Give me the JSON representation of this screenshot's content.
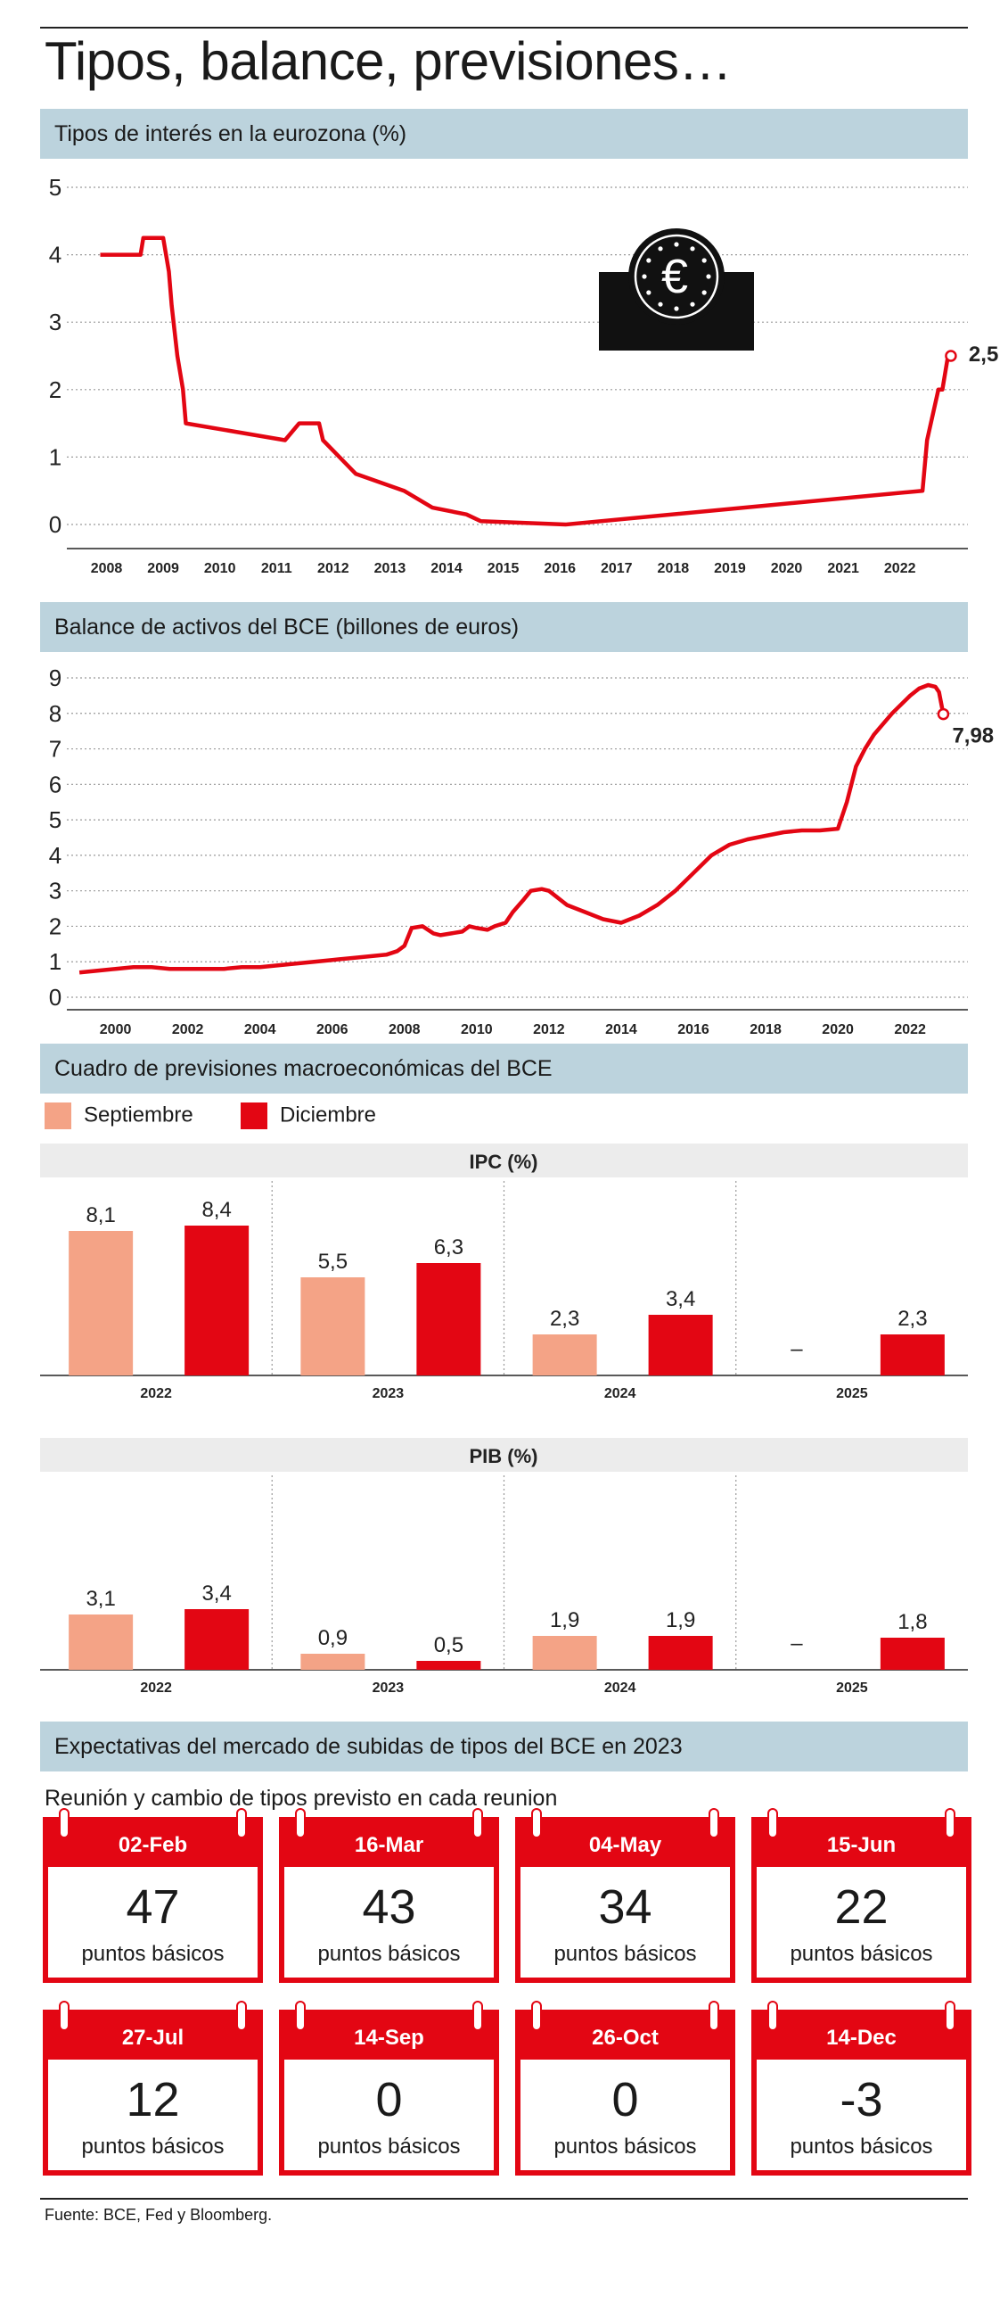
{
  "page": {
    "title": "Tipos, balance, previsiones…",
    "source": "Fuente: BCE, Fed y Bloomberg."
  },
  "colors": {
    "red": "#e30613",
    "salmon": "#f4a386",
    "section_bg": "#bcd3dd",
    "panel_bg": "#ececec"
  },
  "chart_data": [
    {
      "type": "line",
      "title": "Tipos de interés en la eurozona (%)",
      "ylim": [
        0,
        5
      ],
      "yticks": [
        "0",
        "1",
        "2",
        "3",
        "4",
        "5"
      ],
      "xticks": [
        "2008",
        "2009",
        "2010",
        "2011",
        "2012",
        "2013",
        "2014",
        "2015",
        "2016",
        "2017",
        "2018",
        "2019",
        "2020",
        "2021",
        "2022"
      ],
      "end_label": "2,5",
      "icon": "euro-icon",
      "series": [
        {
          "x": [
            2007.99,
            2008.7,
            2008.75,
            2009.1,
            2009.2,
            2009.25,
            2009.35,
            2009.45,
            2009.5,
            2011.25,
            2011.5,
            2011.85,
            2011.92,
            2012.5,
            2013.35,
            2013.85,
            2014.45,
            2014.7,
            2016.2,
            2022.5,
            2022.58,
            2022.78,
            2022.85,
            2022.95,
            2023.0
          ],
          "y": [
            4.0,
            4.0,
            4.25,
            4.25,
            3.75,
            3.25,
            2.5,
            2.0,
            1.5,
            1.25,
            1.5,
            1.5,
            1.25,
            0.75,
            0.5,
            0.25,
            0.15,
            0.05,
            0.0,
            0.5,
            1.25,
            2.0,
            2.0,
            2.5,
            2.5
          ]
        }
      ]
    },
    {
      "type": "line",
      "title": "Balance de activos del BCE (billones de euros)",
      "ylim": [
        0,
        9
      ],
      "yticks": [
        "0",
        "1",
        "2",
        "3",
        "4",
        "5",
        "6",
        "7",
        "8",
        "9"
      ],
      "xticks": [
        "2000",
        "2002",
        "2004",
        "2006",
        "2008",
        "2010",
        "2012",
        "2014",
        "2016",
        "2018",
        "2020",
        "2022"
      ],
      "end_label": "7,98",
      "series": [
        {
          "x": [
            1999.0,
            1999.5,
            2000.0,
            2000.5,
            2001.0,
            2001.5,
            2002.0,
            2002.5,
            2003.0,
            2003.5,
            2004.0,
            2004.5,
            2005.0,
            2005.5,
            2006.0,
            2006.5,
            2007.0,
            2007.5,
            2007.8,
            2008.0,
            2008.2,
            2008.5,
            2008.8,
            2009.0,
            2009.3,
            2009.6,
            2009.8,
            2010.0,
            2010.3,
            2010.5,
            2010.8,
            2011.0,
            2011.3,
            2011.5,
            2011.8,
            2012.0,
            2012.5,
            2013.0,
            2013.5,
            2014.0,
            2014.5,
            2015.0,
            2015.5,
            2016.0,
            2016.5,
            2017.0,
            2017.5,
            2018.0,
            2018.5,
            2019.0,
            2019.5,
            2020.0,
            2020.25,
            2020.5,
            2020.75,
            2021.0,
            2021.5,
            2022.0,
            2022.25,
            2022.5,
            2022.7,
            2022.8,
            2022.92
          ],
          "y": [
            0.7,
            0.75,
            0.8,
            0.85,
            0.85,
            0.8,
            0.8,
            0.8,
            0.8,
            0.85,
            0.85,
            0.9,
            0.95,
            1.0,
            1.05,
            1.1,
            1.15,
            1.2,
            1.3,
            1.45,
            1.95,
            2.0,
            1.8,
            1.75,
            1.8,
            1.85,
            2.0,
            1.95,
            1.9,
            2.0,
            2.1,
            2.4,
            2.75,
            3.0,
            3.05,
            3.0,
            2.6,
            2.4,
            2.2,
            2.1,
            2.3,
            2.6,
            3.0,
            3.5,
            4.0,
            4.3,
            4.45,
            4.55,
            4.65,
            4.7,
            4.7,
            4.75,
            5.5,
            6.5,
            7.0,
            7.4,
            8.0,
            8.5,
            8.7,
            8.8,
            8.75,
            8.6,
            7.98
          ]
        }
      ]
    },
    {
      "type": "bar",
      "title": "Cuadro de previsiones macroeconómicas del BCE",
      "legend": [
        "Septiembre",
        "Diciembre"
      ],
      "panels": [
        {
          "title": "IPC (%)",
          "categories": [
            "2022",
            "2023",
            "2024",
            "2025"
          ],
          "series": [
            {
              "name": "Septiembre",
              "values": [
                8.1,
                5.5,
                2.3,
                null
              ],
              "labels": [
                "8,1",
                "5,5",
                "2,3",
                "–"
              ]
            },
            {
              "name": "Diciembre",
              "values": [
                8.4,
                6.3,
                3.4,
                2.3
              ],
              "labels": [
                "8,4",
                "6,3",
                "3,4",
                "2,3"
              ]
            }
          ]
        },
        {
          "title": "PIB (%)",
          "categories": [
            "2022",
            "2023",
            "2024",
            "2025"
          ],
          "series": [
            {
              "name": "Septiembre",
              "values": [
                3.1,
                0.9,
                1.9,
                null
              ],
              "labels": [
                "3,1",
                "0,9",
                "1,9",
                "–"
              ]
            },
            {
              "name": "Diciembre",
              "values": [
                3.4,
                0.5,
                1.9,
                1.8
              ],
              "labels": [
                "3,4",
                "0,5",
                "1,9",
                "1,8"
              ]
            }
          ]
        }
      ]
    }
  ],
  "expectations": {
    "title": "Expectativas del mercado de subidas de tipos del BCE en 2023",
    "subtitle": "Reunión y cambio de tipos previsto en cada reunion",
    "unit": "puntos básicos",
    "meetings": [
      {
        "date": "02-Feb",
        "value": "47"
      },
      {
        "date": "16-Mar",
        "value": "43"
      },
      {
        "date": "04-May",
        "value": "34"
      },
      {
        "date": "15-Jun",
        "value": "22"
      },
      {
        "date": "27-Jul",
        "value": "12"
      },
      {
        "date": "14-Sep",
        "value": "0"
      },
      {
        "date": "26-Oct",
        "value": "0"
      },
      {
        "date": "14-Dec",
        "value": "-3"
      }
    ]
  }
}
